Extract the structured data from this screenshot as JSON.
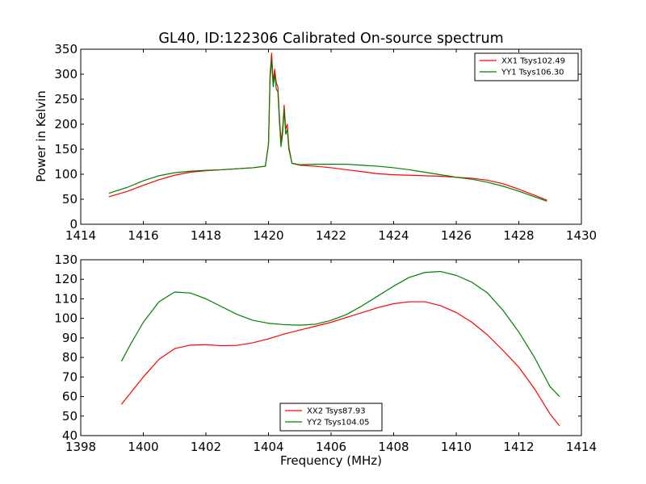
{
  "chart_data": [
    {
      "type": "line",
      "title": "GL40, ID:122306 Calibrated On-source spectrum",
      "xlabel": "",
      "ylabel": "Power in Kelvin",
      "xlim": [
        1414,
        1430
      ],
      "ylim": [
        0,
        350
      ],
      "xticks": [
        1414,
        1416,
        1418,
        1420,
        1422,
        1424,
        1426,
        1428,
        1430
      ],
      "yticks": [
        0,
        50,
        100,
        150,
        200,
        250,
        300,
        350
      ],
      "legend_position": "top-right",
      "series": [
        {
          "name": "XX1 Tsys102.49",
          "color": "#ff0000",
          "points": [
            [
              1414.9,
              55
            ],
            [
              1415.5,
              66
            ],
            [
              1416,
              78
            ],
            [
              1416.5,
              89
            ],
            [
              1417,
              98
            ],
            [
              1417.5,
              104
            ],
            [
              1418,
              107
            ],
            [
              1418.5,
              109
            ],
            [
              1419,
              111
            ],
            [
              1419.5,
              113
            ],
            [
              1419.9,
              116
            ],
            [
              1420.0,
              160
            ],
            [
              1420.05,
              300
            ],
            [
              1420.1,
              342
            ],
            [
              1420.15,
              285
            ],
            [
              1420.2,
              310
            ],
            [
              1420.25,
              282
            ],
            [
              1420.3,
              275
            ],
            [
              1420.35,
              215
            ],
            [
              1420.4,
              165
            ],
            [
              1420.45,
              190
            ],
            [
              1420.5,
              238
            ],
            [
              1420.55,
              190
            ],
            [
              1420.6,
              200
            ],
            [
              1420.65,
              155
            ],
            [
              1420.75,
              122
            ],
            [
              1421,
              118
            ],
            [
              1421.5,
              116
            ],
            [
              1422,
              113
            ],
            [
              1422.5,
              109
            ],
            [
              1423,
              105
            ],
            [
              1423.5,
              101
            ],
            [
              1424,
              99
            ],
            [
              1424.5,
              98
            ],
            [
              1425,
              97
            ],
            [
              1425.5,
              96
            ],
            [
              1426,
              94
            ],
            [
              1426.5,
              92
            ],
            [
              1427,
              88
            ],
            [
              1427.5,
              81
            ],
            [
              1428,
              70
            ],
            [
              1428.5,
              58
            ],
            [
              1428.9,
              48
            ]
          ]
        },
        {
          "name": "YY1 Tsys106.30",
          "color": "#008000",
          "points": [
            [
              1414.9,
              62
            ],
            [
              1415.5,
              74
            ],
            [
              1416,
              87
            ],
            [
              1416.5,
              97
            ],
            [
              1417,
              103
            ],
            [
              1417.5,
              106
            ],
            [
              1418,
              108
            ],
            [
              1418.5,
              109
            ],
            [
              1419,
              111
            ],
            [
              1419.5,
              113
            ],
            [
              1419.9,
              116
            ],
            [
              1420.0,
              160
            ],
            [
              1420.05,
              290
            ],
            [
              1420.1,
              330
            ],
            [
              1420.15,
              275
            ],
            [
              1420.2,
              300
            ],
            [
              1420.25,
              270
            ],
            [
              1420.3,
              265
            ],
            [
              1420.35,
              205
            ],
            [
              1420.4,
              155
            ],
            [
              1420.45,
              180
            ],
            [
              1420.5,
              230
            ],
            [
              1420.55,
              180
            ],
            [
              1420.6,
              190
            ],
            [
              1420.65,
              150
            ],
            [
              1420.75,
              122
            ],
            [
              1421,
              119
            ],
            [
              1421.5,
              120
            ],
            [
              1422,
              120
            ],
            [
              1422.5,
              120
            ],
            [
              1423,
              118
            ],
            [
              1423.5,
              116
            ],
            [
              1424,
              113
            ],
            [
              1424.5,
              109
            ],
            [
              1425,
              104
            ],
            [
              1425.5,
              99
            ],
            [
              1426,
              94
            ],
            [
              1426.5,
              90
            ],
            [
              1427,
              84
            ],
            [
              1427.5,
              76
            ],
            [
              1428,
              66
            ],
            [
              1428.5,
              55
            ],
            [
              1428.9,
              46
            ]
          ]
        }
      ]
    },
    {
      "type": "line",
      "title": "",
      "xlabel": "Frequency (MHz)",
      "ylabel": "",
      "xlim": [
        1398,
        1414
      ],
      "ylim": [
        40,
        130
      ],
      "xticks": [
        1398,
        1400,
        1402,
        1404,
        1406,
        1408,
        1410,
        1412,
        1414
      ],
      "yticks": [
        40,
        50,
        60,
        70,
        80,
        90,
        100,
        110,
        120,
        130
      ],
      "legend_position": "lower-center",
      "series": [
        {
          "name": "XX2 Tsys87.93",
          "color": "#ff0000",
          "points": [
            [
              1399.3,
              56
            ],
            [
              1399.6,
              62
            ],
            [
              1400,
              70
            ],
            [
              1400.5,
              79
            ],
            [
              1401,
              84.5
            ],
            [
              1401.5,
              86.3
            ],
            [
              1402,
              86.5
            ],
            [
              1402.5,
              86
            ],
            [
              1403,
              86.2
            ],
            [
              1403.5,
              87.5
            ],
            [
              1404,
              89.5
            ],
            [
              1404.5,
              92
            ],
            [
              1405,
              94
            ],
            [
              1405.5,
              96
            ],
            [
              1406,
              98
            ],
            [
              1406.5,
              100.5
            ],
            [
              1407,
              103
            ],
            [
              1407.5,
              105.5
            ],
            [
              1408,
              107.5
            ],
            [
              1408.5,
              108.5
            ],
            [
              1409,
              108.5
            ],
            [
              1409.5,
              106.5
            ],
            [
              1410,
              103
            ],
            [
              1410.5,
              98
            ],
            [
              1411,
              91.5
            ],
            [
              1411.5,
              83.5
            ],
            [
              1412,
              75
            ],
            [
              1412.5,
              64
            ],
            [
              1413,
              51
            ],
            [
              1413.3,
              45
            ]
          ]
        },
        {
          "name": "YY2 Tsys104.05",
          "color": "#008000",
          "points": [
            [
              1399.3,
              78
            ],
            [
              1399.6,
              87
            ],
            [
              1400,
              98
            ],
            [
              1400.5,
              108.5
            ],
            [
              1401,
              113.5
            ],
            [
              1401.5,
              113
            ],
            [
              1402,
              110
            ],
            [
              1402.5,
              106
            ],
            [
              1403,
              102
            ],
            [
              1403.5,
              99
            ],
            [
              1404,
              97.5
            ],
            [
              1404.5,
              96.8
            ],
            [
              1405,
              96.5
            ],
            [
              1405.5,
              97
            ],
            [
              1406,
              99
            ],
            [
              1406.5,
              102
            ],
            [
              1407,
              106.5
            ],
            [
              1407.5,
              111.5
            ],
            [
              1408,
              116.5
            ],
            [
              1408.5,
              121
            ],
            [
              1409,
              123.5
            ],
            [
              1409.5,
              124
            ],
            [
              1410,
              122
            ],
            [
              1410.5,
              118.5
            ],
            [
              1411,
              113
            ],
            [
              1411.5,
              104
            ],
            [
              1412,
              93
            ],
            [
              1412.5,
              80
            ],
            [
              1413,
              65
            ],
            [
              1413.3,
              60
            ]
          ]
        }
      ]
    }
  ]
}
